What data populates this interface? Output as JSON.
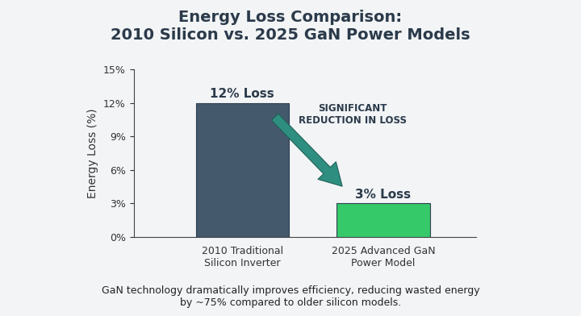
{
  "chart_data": {
    "type": "bar",
    "title": "Energy Loss Comparison:\n2010 Silicon vs. 2025 GaN Power Models",
    "y_label": "Energy Loss (%)",
    "categories": [
      "2010 Traditional\nSilicon Inverter",
      "2025 Advanced GaN\nPower Model"
    ],
    "values": [
      12,
      3
    ],
    "value_labels": [
      "12% Loss",
      "3% Loss"
    ],
    "data_labels": true,
    "colors": [
      "#45596c",
      "#36c96a"
    ],
    "ylim": [
      0,
      15
    ],
    "yticks": [
      {
        "value": 0,
        "label": "0%"
      },
      {
        "value": 3,
        "label": "3%"
      },
      {
        "value": 6,
        "label": "6%"
      },
      {
        "value": 9,
        "label": "9%"
      },
      {
        "value": 12,
        "label": "12%"
      },
      {
        "value": 15,
        "label": "15%"
      }
    ],
    "grid": false,
    "annotation": "SIGNIFICANT\nREDUCTION IN LOSS",
    "caption": "GaN technology dramatically improves efficiency, reducing wasted energy\nby ~75% compared to older silicon models."
  }
}
